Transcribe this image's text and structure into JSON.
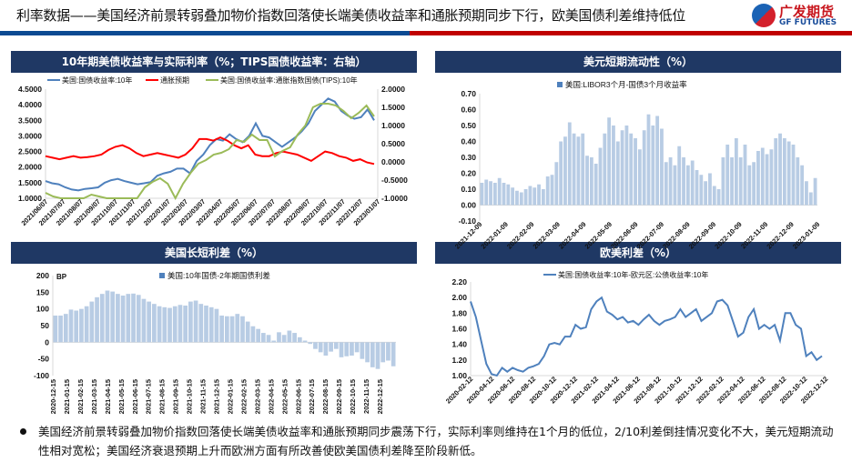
{
  "header": {
    "title": "利率数据——美国经济前景转弱叠加物价指数回落使长端美债收益率和通胀预期同步下行，欧美国债利差维持低位",
    "logo_cn": "广发期货",
    "logo_en": "GF FUTURES"
  },
  "colors": {
    "navy": "#1f3864",
    "blue_line": "#4f81bd",
    "red_line": "#ff0000",
    "green_line": "#9bbb59",
    "bar": "#b8cce4"
  },
  "panels": [
    {
      "title": "10年期美债收益率与实际利率（%；TIPS国债收益率：右轴）"
    },
    {
      "title": "美元短期流动性（%）"
    },
    {
      "title": "美国长短利差（%）"
    },
    {
      "title": "欧美利差（%）"
    }
  ],
  "chart_data": [
    {
      "type": "line",
      "title": "10年期美债收益率与实际利率（%；TIPS国债收益率：右轴）",
      "ylim": [
        1.0,
        4.5
      ],
      "y2lim": [
        -1.0,
        2.0
      ],
      "yticks": [
        "1.0000",
        "1.5000",
        "2.0000",
        "2.5000",
        "3.0000",
        "3.5000",
        "4.0000",
        "4.5000"
      ],
      "y2ticks": [
        "-1.0000",
        "-0.5000",
        "0.0000",
        "0.5000",
        "1.0000",
        "1.5000",
        "2.0000"
      ],
      "xticks": [
        "2021/06/07",
        "2021/07/07",
        "2021/08/07",
        "2021/09/07",
        "2021/10/07",
        "2021/11/07",
        "2021/12/07",
        "2022/01/07",
        "2022/02/07",
        "2022/03/07",
        "2022/04/07",
        "2022/05/07",
        "2022/06/07",
        "2022/07/07",
        "2022/08/07",
        "2022/09/07",
        "2022/10/07",
        "2022/11/07",
        "2022/12/07",
        "2023/01/07"
      ],
      "series": [
        {
          "name": "美国:国债收益率:10年",
          "axis": "left",
          "values": [
            1.55,
            1.48,
            1.45,
            1.35,
            1.28,
            1.25,
            1.3,
            1.32,
            1.35,
            1.5,
            1.58,
            1.62,
            1.55,
            1.5,
            1.45,
            1.48,
            1.52,
            1.72,
            1.8,
            1.85,
            1.95,
            1.95,
            1.8,
            2.2,
            2.4,
            2.7,
            2.9,
            2.85,
            3.05,
            2.9,
            2.8,
            3.0,
            3.4,
            3.0,
            2.95,
            2.8,
            2.65,
            2.8,
            2.95,
            3.15,
            3.4,
            3.8,
            4.0,
            4.2,
            4.1,
            3.8,
            3.65,
            3.55,
            3.6,
            3.85,
            3.5
          ]
        },
        {
          "name": "通胀预期",
          "axis": "left",
          "values": [
            2.35,
            2.3,
            2.25,
            2.3,
            2.35,
            2.3,
            2.32,
            2.35,
            2.4,
            2.55,
            2.65,
            2.7,
            2.6,
            2.45,
            2.35,
            2.4,
            2.45,
            2.4,
            2.35,
            2.3,
            2.4,
            2.6,
            2.9,
            2.9,
            2.85,
            2.95,
            2.85,
            2.7,
            2.6,
            2.7,
            2.4,
            2.35,
            2.35,
            2.45,
            2.5,
            2.45,
            2.4,
            2.3,
            2.2,
            2.35,
            2.5,
            2.45,
            2.35,
            2.3,
            2.2,
            2.25,
            2.15,
            2.1
          ]
        },
        {
          "name": "美国:国债收益率:通胀指数国债(TIPS):10年",
          "axis": "right",
          "values": [
            -0.85,
            -0.95,
            -1.05,
            -1.1,
            -1.05,
            -1.0,
            -0.9,
            -0.95,
            -1.0,
            -1.05,
            -1.0,
            -1.05,
            -1.0,
            -0.7,
            -0.55,
            -0.45,
            -0.6,
            -1.0,
            -0.6,
            -0.3,
            -0.05,
            0.05,
            0.2,
            0.25,
            0.35,
            0.6,
            0.55,
            0.75,
            0.6,
            0.6,
            0.15,
            0.3,
            0.4,
            0.75,
            1.0,
            1.5,
            1.6,
            1.6,
            1.55,
            1.4,
            1.2,
            1.35,
            1.55,
            1.25
          ]
        }
      ]
    },
    {
      "type": "bar",
      "title": "美元短期流动性（%）",
      "ylim": [
        -0.1,
        0.7
      ],
      "yticks": [
        "-0.10",
        "0.00",
        "0.10",
        "0.20",
        "0.30",
        "0.40",
        "0.50",
        "0.60",
        "0.70"
      ],
      "xticks": [
        "2021-12-09",
        "2022-01-09",
        "2022-02-09",
        "2022-03-09",
        "2022-04-09",
        "2022-05-09",
        "2022-06-09",
        "2022-07-09",
        "2022-08-09",
        "2022-09-09",
        "2022-10-09",
        "2022-11-09",
        "2022-12-09",
        "2023-01-09"
      ],
      "series": [
        {
          "name": "美国:LIBOR3个月-国债3个月收益率",
          "values": [
            0.14,
            0.16,
            0.15,
            0.14,
            0.17,
            0.14,
            0.13,
            0.11,
            0.09,
            0.08,
            0.1,
            0.12,
            0.11,
            0.13,
            0.1,
            0.18,
            0.19,
            0.27,
            0.4,
            0.43,
            0.52,
            0.45,
            0.43,
            0.45,
            0.31,
            0.3,
            0.26,
            0.36,
            0.45,
            0.55,
            0.5,
            0.4,
            0.47,
            0.5,
            0.45,
            0.42,
            0.35,
            0.47,
            0.57,
            0.5,
            0.56,
            0.48,
            0.27,
            0.3,
            0.25,
            0.37,
            0.3,
            0.25,
            0.28,
            0.22,
            0.19,
            0.15,
            0.2,
            0.12,
            0.1,
            0.3,
            0.38,
            0.3,
            0.42,
            0.3,
            0.38,
            0.25,
            0.27,
            0.34,
            0.36,
            0.32,
            0.35,
            0.42,
            0.45,
            0.42,
            0.4,
            0.38,
            0.3,
            0.25,
            0.15,
            0.08,
            0.17
          ]
        }
      ]
    },
    {
      "type": "bar",
      "title": "美国长短利差（%）",
      "ylim": [
        -100,
        200
      ],
      "unit": "BP",
      "yticks": [
        "-100",
        "-50",
        "0",
        "50",
        "100",
        "150",
        "200"
      ],
      "xticks": [
        "2020-12-15",
        "2021-01-15",
        "2021-02-15",
        "2021-03-15",
        "2021-04-15",
        "2021-05-15",
        "2021-06-15",
        "2021-07-15",
        "2021-08-15",
        "2021-09-15",
        "2021-10-15",
        "2021-11-15",
        "2021-12-15",
        "2022-01-15",
        "2022-02-15",
        "2022-03-15",
        "2022-04-15",
        "2022-05-15",
        "2022-06-15",
        "2022-07-15",
        "2022-08-15",
        "2022-09-15",
        "2022-10-15",
        "2022-11-15",
        "2022-12-15"
      ],
      "series": [
        {
          "name": "美国:10年国债-2年期国债利差",
          "values": [
            80,
            80,
            85,
            98,
            95,
            100,
            108,
            122,
            135,
            145,
            155,
            152,
            145,
            140,
            145,
            146,
            142,
            130,
            122,
            115,
            108,
            105,
            103,
            108,
            112,
            110,
            122,
            125,
            115,
            110,
            105,
            100,
            80,
            78,
            78,
            85,
            78,
            62,
            48,
            40,
            28,
            22,
            5,
            30,
            22,
            35,
            28,
            15,
            5,
            -5,
            -20,
            -30,
            -40,
            -28,
            -20,
            -45,
            -42,
            -40,
            -30,
            -50,
            -60,
            -75,
            -80,
            -60,
            -55,
            -72
          ]
        }
      ]
    },
    {
      "type": "line",
      "title": "欧美利差（%）",
      "ylim": [
        1.0,
        2.2
      ],
      "yticks": [
        "1.00",
        "1.20",
        "1.40",
        "1.60",
        "1.80",
        "2.00",
        "2.20"
      ],
      "xticks": [
        "2020-02-12",
        "2020-04-12",
        "2020-06-12",
        "2020-08-12",
        "2020-10-12",
        "2020-12-12",
        "2021-02-12",
        "2021-04-12",
        "2021-06-12",
        "2021-08-12",
        "2021-10-12",
        "2021-12-12",
        "2022-02-12",
        "2022-04-12",
        "2022-06-12",
        "2022-08-12",
        "2022-10-12",
        "2022-12-12"
      ],
      "series": [
        {
          "name": "美国:国债收益率:10年-欧元区:公债收益率:10年",
          "values": [
            1.95,
            1.75,
            1.45,
            1.15,
            1.02,
            1.0,
            1.1,
            1.05,
            1.1,
            1.07,
            1.05,
            1.1,
            1.12,
            1.15,
            1.25,
            1.4,
            1.42,
            1.4,
            1.5,
            1.5,
            1.65,
            1.6,
            1.62,
            1.85,
            1.95,
            2.0,
            1.82,
            1.78,
            1.72,
            1.75,
            1.68,
            1.7,
            1.65,
            1.72,
            1.78,
            1.7,
            1.65,
            1.7,
            1.72,
            1.75,
            1.85,
            1.75,
            1.8,
            1.85,
            1.7,
            1.75,
            1.8,
            1.95,
            1.97,
            1.9,
            1.7,
            1.5,
            1.55,
            1.75,
            1.85,
            1.6,
            1.65,
            1.6,
            1.65,
            1.45,
            1.8,
            1.8,
            1.65,
            1.6,
            1.25,
            1.3,
            1.2,
            1.25
          ]
        }
      ]
    }
  ],
  "note": "美国经济前景转弱叠加物价指数回落使长端美债收益率和通胀预期同步震荡下行，实际利率则维持在1个月的低位，2/10利差倒挂情况变化不大，美元短期流动性相对宽松；美国经济衰退预期上升而欧洲方面有所改善使欧美国债利差降至阶段新低。"
}
